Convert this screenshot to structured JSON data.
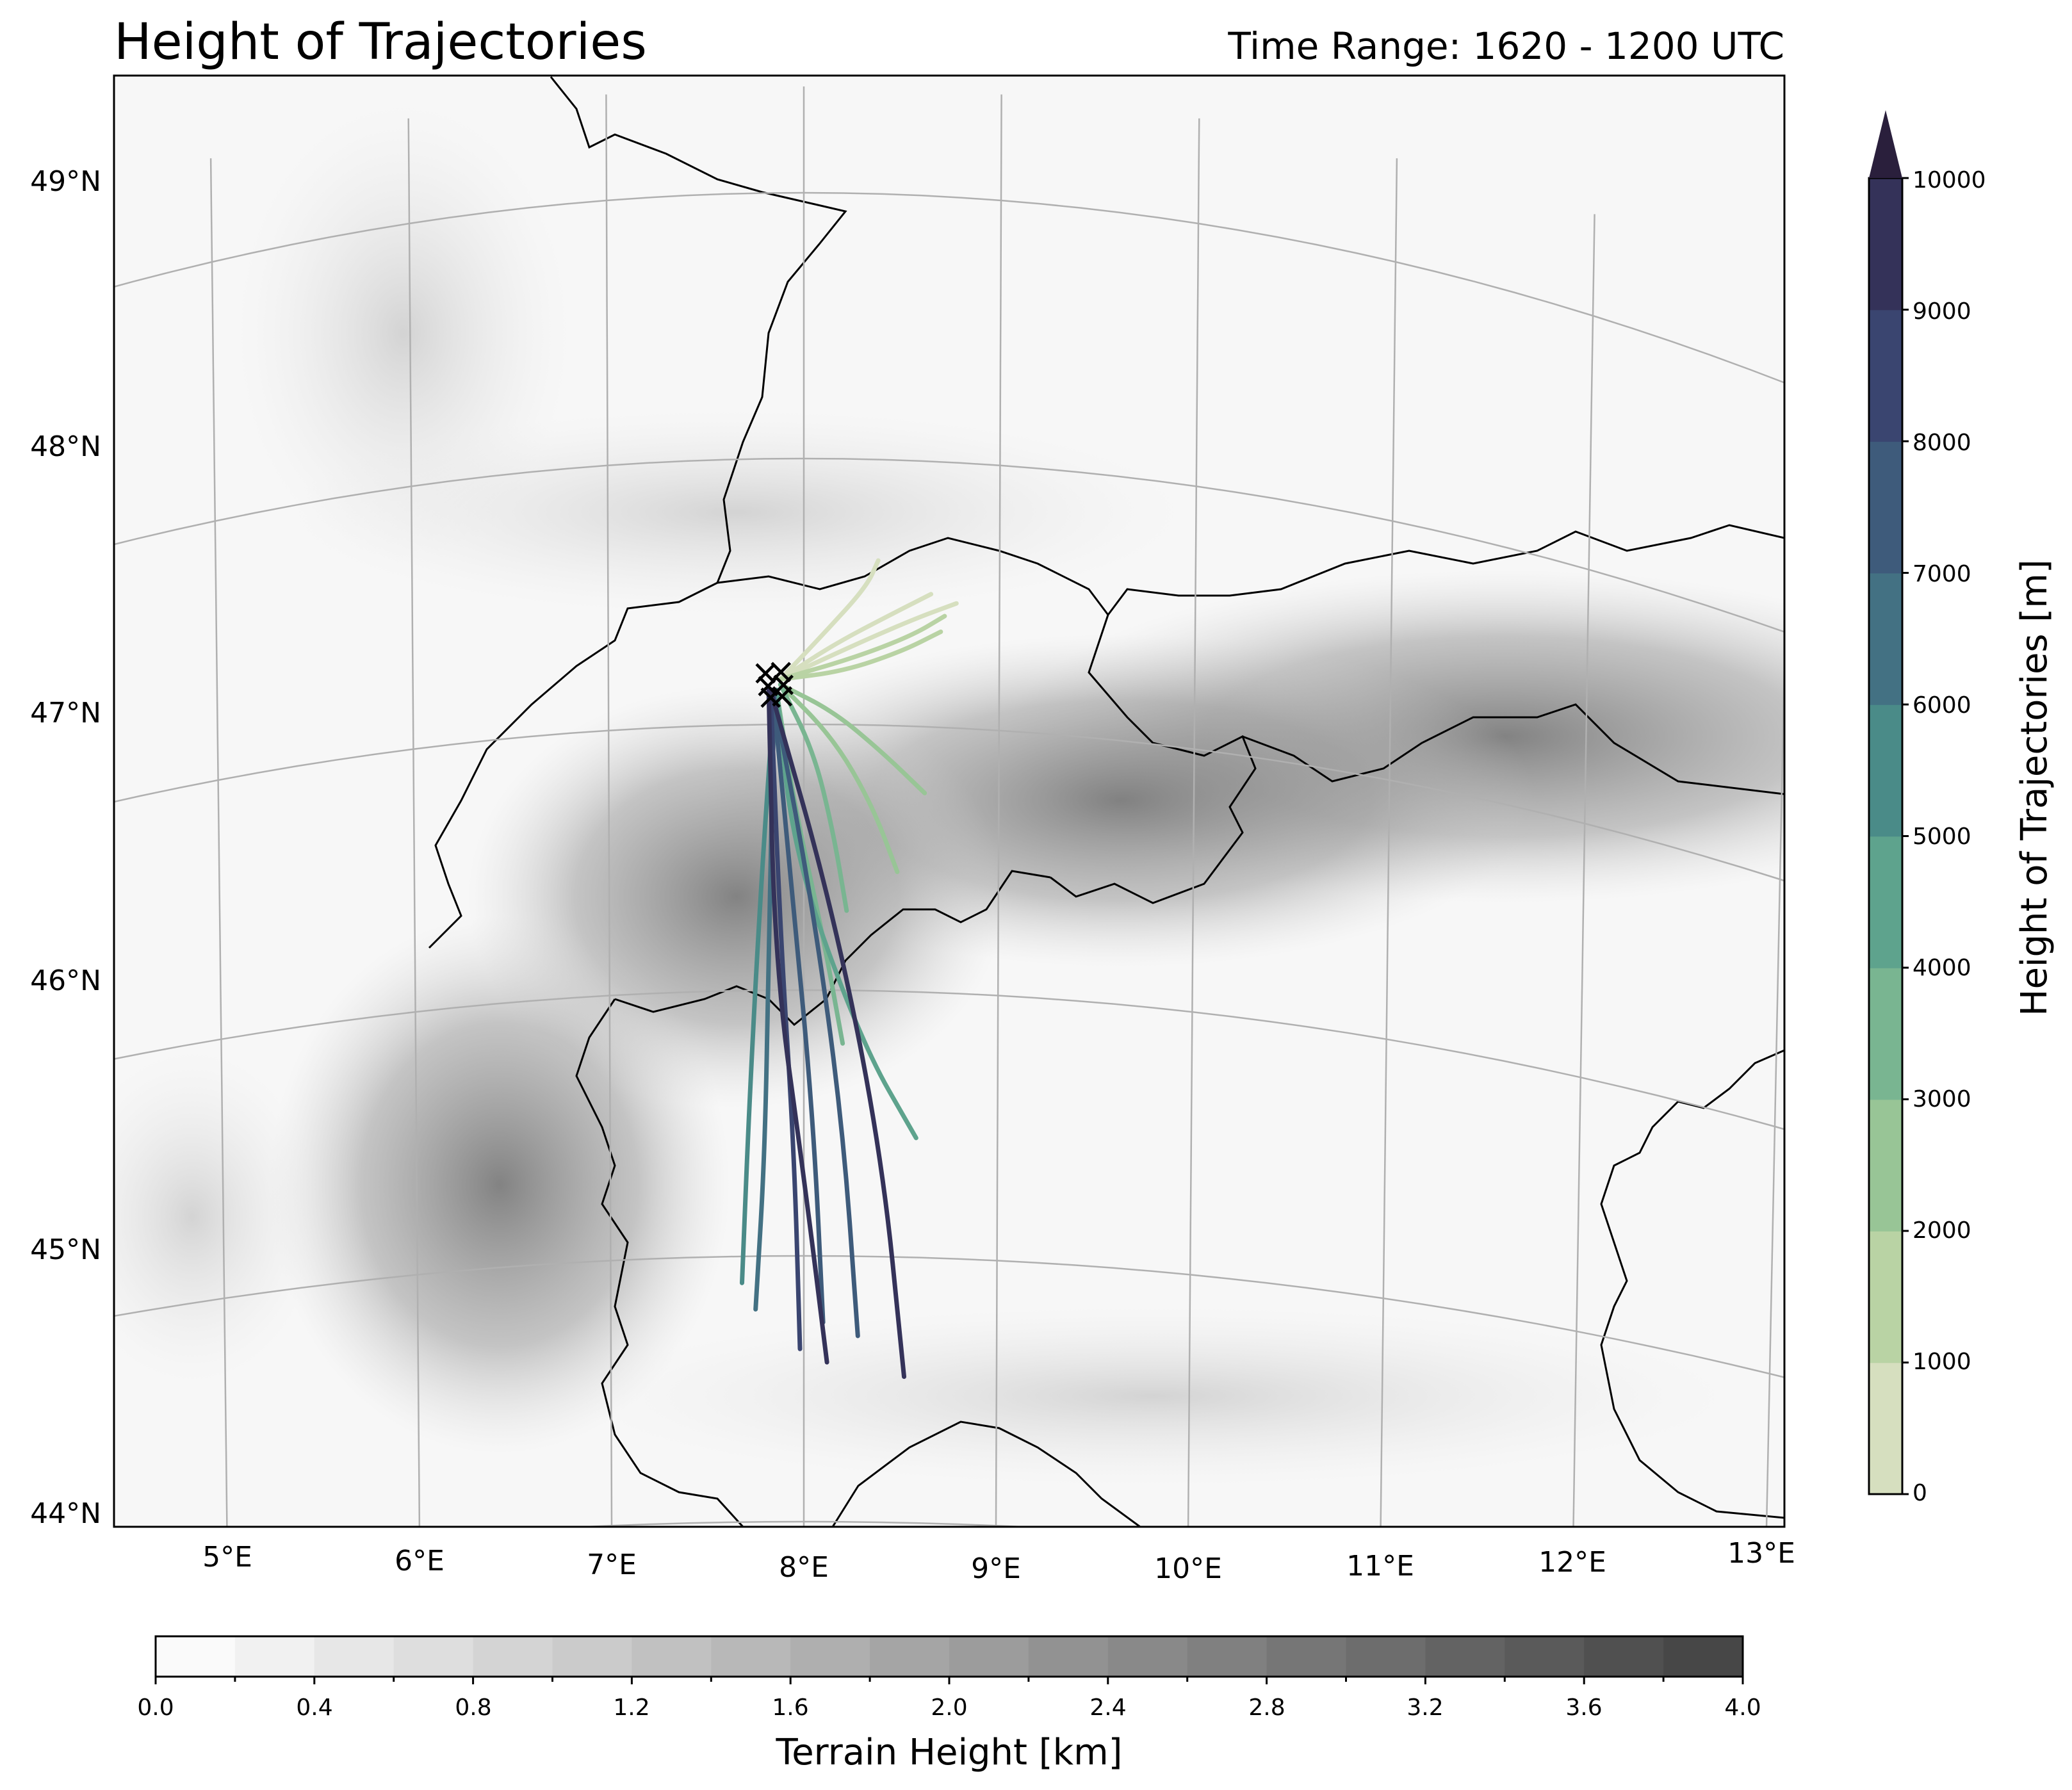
{
  "title": "Height of Trajectories",
  "subtitle": "Time Range: 1620 - 1200 UTC",
  "map": {
    "lat_labels": [
      "49°N",
      "48°N",
      "47°N",
      "46°N",
      "45°N",
      "44°N"
    ],
    "lon_labels": [
      "5°E",
      "6°E",
      "7°E",
      "8°E",
      "9°E",
      "10°E",
      "11°E",
      "12°E",
      "13°E"
    ],
    "lat_range": [
      44,
      49.4
    ],
    "lon_range": [
      4.5,
      13.1
    ],
    "background_color": "#f7f7f7",
    "start_marker": {
      "symbol": "×",
      "lat": 47.15,
      "lon": 7.85,
      "count": 6
    }
  },
  "trajectory_colorbar": {
    "label": "Height of Trajectories [m]",
    "ticks": [
      "0",
      "1000",
      "2000",
      "3000",
      "4000",
      "5000",
      "6000",
      "7000",
      "8000",
      "9000",
      "10000"
    ],
    "colors": [
      "#d6dfbf",
      "#b9d3a4",
      "#98c596",
      "#79b591",
      "#5ea38d",
      "#4a8b88",
      "#437183",
      "#3e5b7b",
      "#3a4570",
      "#343259",
      "#2a1f3c"
    ],
    "extend": "max"
  },
  "terrain_colorbar": {
    "label": "Terrain Height [km]",
    "ticks": [
      "0.0",
      "0.4",
      "0.8",
      "1.2",
      "1.6",
      "2.0",
      "2.4",
      "2.8",
      "3.2",
      "3.6",
      "4.0"
    ],
    "levels": 20,
    "min_color": "#fafafa",
    "max_color": "#474747"
  },
  "chart_data": {
    "type": "map-trajectories",
    "title": "Height of Trajectories",
    "subtitle": "Time Range: 1620 - 1200 UTC",
    "series": [
      {
        "height_m": 500,
        "path": [
          [
            47.17,
            7.88
          ],
          [
            47.3,
            8.15
          ],
          [
            47.42,
            8.45
          ],
          [
            47.5,
            8.65
          ]
        ]
      },
      {
        "height_m": 600,
        "path": [
          [
            47.17,
            7.88
          ],
          [
            47.34,
            8.1
          ],
          [
            47.52,
            8.32
          ],
          [
            47.62,
            8.38
          ]
        ]
      },
      {
        "height_m": 800,
        "path": [
          [
            47.17,
            7.88
          ],
          [
            47.28,
            8.2
          ],
          [
            47.4,
            8.55
          ],
          [
            47.47,
            8.78
          ]
        ]
      },
      {
        "height_m": 1200,
        "path": [
          [
            47.17,
            7.88
          ],
          [
            47.25,
            8.25
          ],
          [
            47.34,
            8.55
          ],
          [
            47.42,
            8.72
          ]
        ]
      },
      {
        "height_m": 1500,
        "path": [
          [
            47.17,
            7.88
          ],
          [
            47.2,
            8.2
          ],
          [
            47.28,
            8.5
          ],
          [
            47.36,
            8.7
          ]
        ]
      },
      {
        "height_m": 2500,
        "path": [
          [
            47.15,
            7.88
          ],
          [
            47.05,
            8.15
          ],
          [
            46.9,
            8.4
          ],
          [
            46.75,
            8.62
          ]
        ]
      },
      {
        "height_m": 2800,
        "path": [
          [
            47.15,
            7.88
          ],
          [
            46.95,
            8.15
          ],
          [
            46.7,
            8.35
          ],
          [
            46.45,
            8.48
          ]
        ]
      },
      {
        "height_m": 3200,
        "path": [
          [
            47.15,
            7.88
          ],
          [
            46.9,
            8.05
          ],
          [
            46.6,
            8.15
          ],
          [
            46.3,
            8.22
          ]
        ]
      },
      {
        "height_m": 3800,
        "path": [
          [
            47.13,
            7.86
          ],
          [
            46.7,
            7.95
          ],
          [
            46.2,
            8.1
          ],
          [
            45.8,
            8.2
          ]
        ]
      },
      {
        "height_m": 4500,
        "path": [
          [
            47.13,
            7.86
          ],
          [
            46.5,
            7.95
          ],
          [
            45.8,
            8.3
          ],
          [
            45.45,
            8.58
          ]
        ]
      },
      {
        "height_m": 5500,
        "path": [
          [
            47.13,
            7.85
          ],
          [
            46.4,
            7.78
          ],
          [
            45.6,
            7.72
          ],
          [
            44.9,
            7.68
          ]
        ]
      },
      {
        "height_m": 6000,
        "path": [
          [
            47.13,
            7.85
          ],
          [
            46.2,
            7.82
          ],
          [
            45.4,
            7.8
          ],
          [
            44.8,
            7.75
          ]
        ]
      },
      {
        "height_m": 7000,
        "path": [
          [
            47.13,
            7.84
          ],
          [
            46.3,
            7.95
          ],
          [
            45.5,
            8.05
          ],
          [
            44.75,
            8.1
          ]
        ]
      },
      {
        "height_m": 7800,
        "path": [
          [
            47.13,
            7.84
          ],
          [
            46.3,
            8.05
          ],
          [
            45.5,
            8.2
          ],
          [
            44.7,
            8.28
          ]
        ]
      },
      {
        "height_m": 8600,
        "path": [
          [
            47.13,
            7.83
          ],
          [
            46.2,
            7.88
          ],
          [
            45.4,
            7.95
          ],
          [
            44.65,
            7.98
          ]
        ]
      },
      {
        "height_m": 9200,
        "path": [
          [
            47.13,
            7.83
          ],
          [
            46.3,
            8.15
          ],
          [
            45.4,
            8.4
          ],
          [
            44.55,
            8.52
          ]
        ]
      },
      {
        "height_m": 9600,
        "path": [
          [
            47.13,
            7.82
          ],
          [
            46.1,
            7.85
          ],
          [
            45.3,
            8.0
          ],
          [
            44.6,
            8.12
          ]
        ]
      }
    ]
  }
}
